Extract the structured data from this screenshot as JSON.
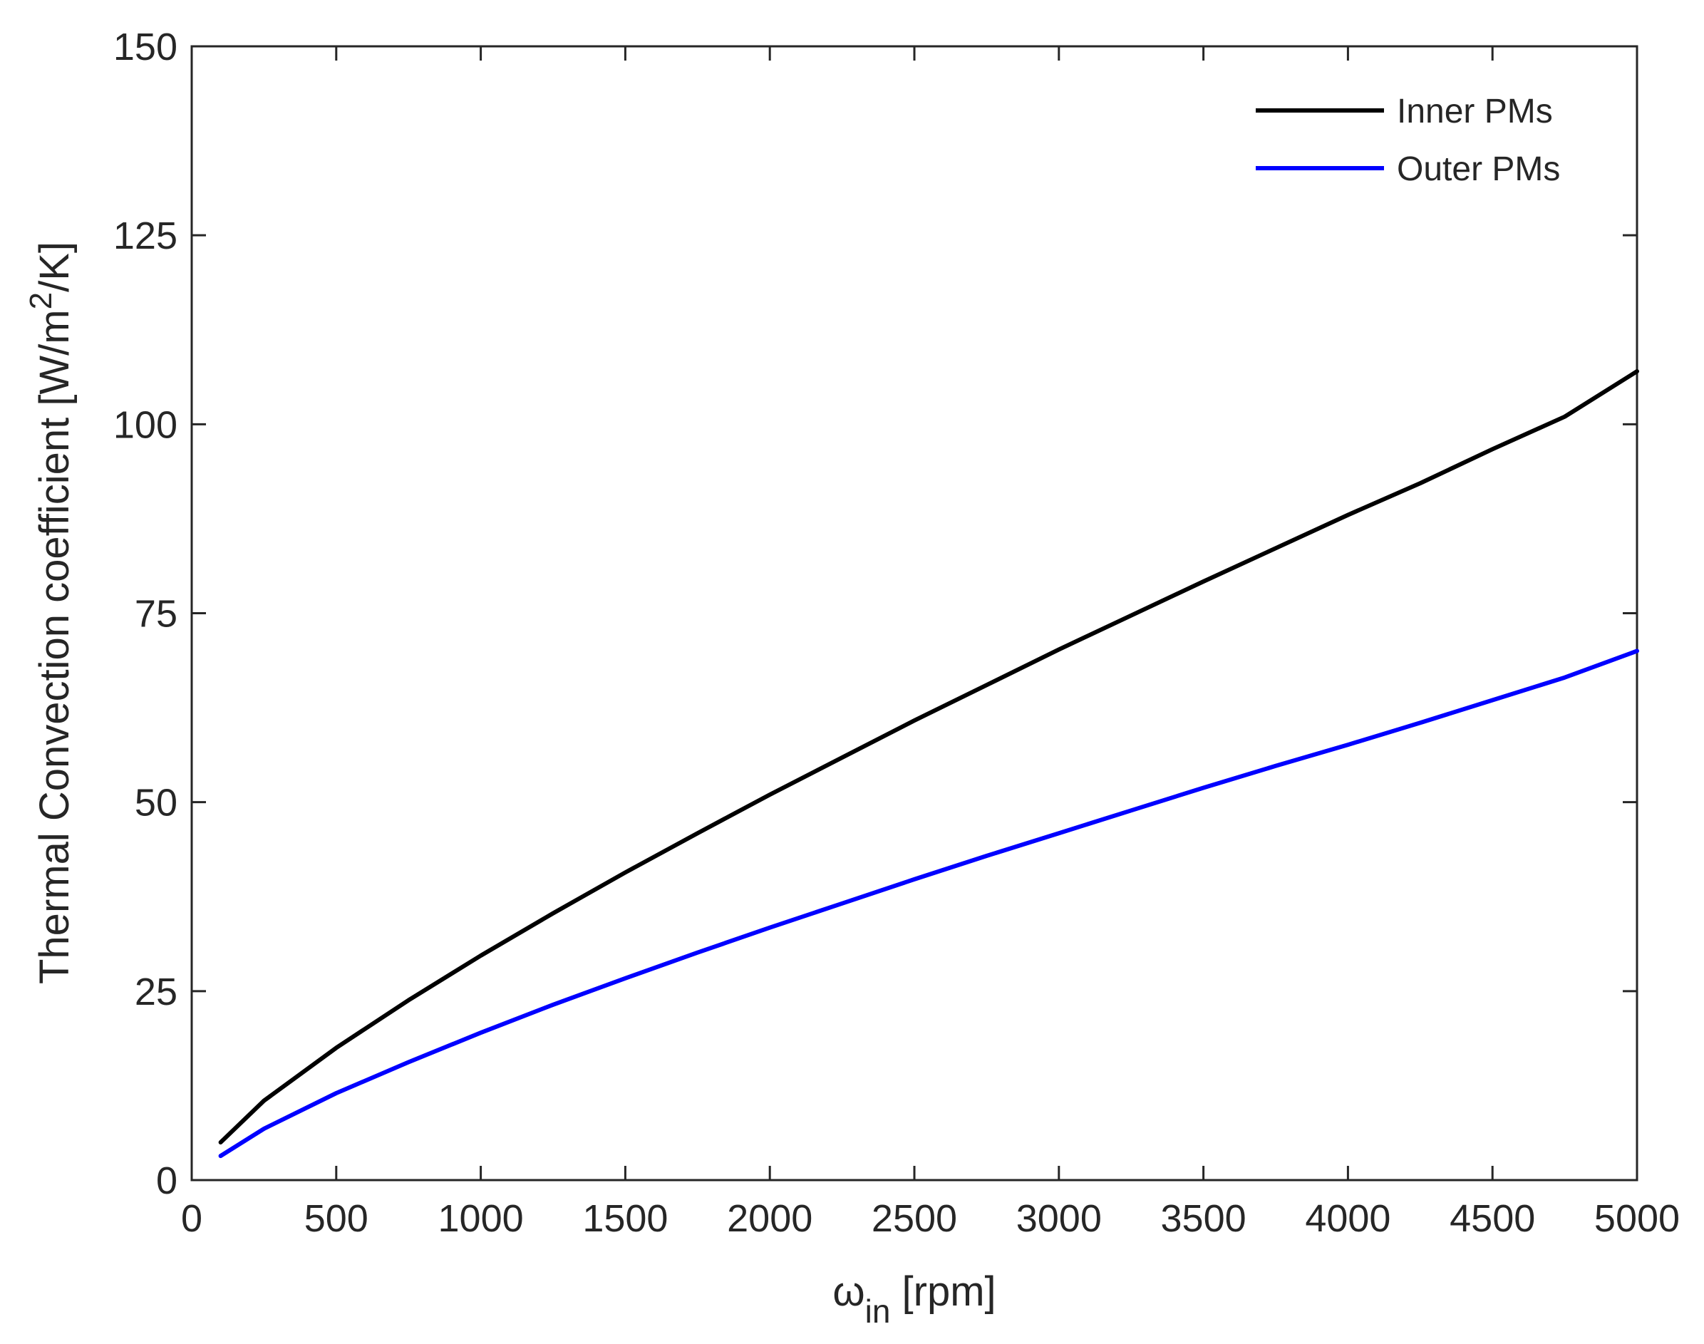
{
  "chart_data": {
    "type": "line",
    "title": "",
    "xlabel": {
      "main": "ω",
      "sub": "in",
      "unit": " [rpm]"
    },
    "ylabel": {
      "main": "Thermal Convection coefficient [W/m",
      "sup": "2",
      "tail": "/K]"
    },
    "xlim": [
      0,
      5000
    ],
    "ylim": [
      0,
      150
    ],
    "xticks": [
      0,
      500,
      1000,
      1500,
      2000,
      2500,
      3000,
      3500,
      4000,
      4500,
      5000
    ],
    "yticks": [
      0,
      25,
      50,
      75,
      100,
      125,
      150
    ],
    "grid": false,
    "legend_position": "top-right",
    "series": [
      {
        "name": "Inner PMs",
        "color": "#000000",
        "x": [
          100,
          250,
          500,
          750,
          1000,
          1250,
          1500,
          1750,
          2000,
          2250,
          2500,
          2750,
          3000,
          3250,
          3500,
          3750,
          4000,
          4250,
          4500,
          4750,
          5000
        ],
        "y": [
          5.0,
          10.5,
          17.5,
          23.8,
          29.7,
          35.3,
          40.7,
          45.9,
          51.0,
          55.9,
          60.8,
          65.5,
          70.2,
          74.7,
          79.2,
          83.6,
          88.0,
          92.2,
          96.7,
          101.0,
          107.0
        ]
      },
      {
        "name": "Outer PMs",
        "color": "#0000ff",
        "x": [
          100,
          250,
          500,
          750,
          1000,
          1250,
          1500,
          1750,
          2000,
          2250,
          2500,
          2750,
          3000,
          3250,
          3500,
          3750,
          4000,
          4250,
          4500,
          4750,
          5000
        ],
        "y": [
          3.2,
          6.8,
          11.5,
          15.6,
          19.5,
          23.2,
          26.7,
          30.1,
          33.4,
          36.6,
          39.8,
          42.9,
          45.9,
          48.9,
          51.9,
          54.8,
          57.6,
          60.5,
          63.5,
          66.5,
          70.0
        ]
      }
    ]
  }
}
